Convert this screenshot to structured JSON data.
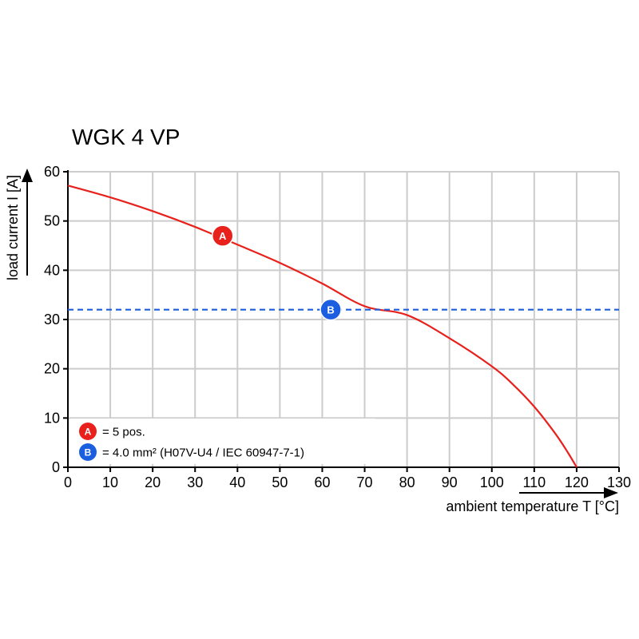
{
  "chart_data": {
    "type": "line",
    "title": "WGK 4 VP",
    "xlabel": "ambient temperature T [°C]",
    "ylabel": "load current I [A]",
    "xlim": [
      0,
      130
    ],
    "ylim": [
      0,
      60
    ],
    "xticks": [
      "0",
      "10",
      "20",
      "30",
      "40",
      "50",
      "60",
      "70",
      "80",
      "90",
      "100",
      "110",
      "120",
      "130"
    ],
    "yticks": [
      "0",
      "10",
      "20",
      "30",
      "40",
      "50",
      "60"
    ],
    "grid": true,
    "series": [
      {
        "marker": "A",
        "color": "#e8211d",
        "style": "solid",
        "x": [
          0,
          10,
          20,
          30,
          40,
          50,
          60,
          70,
          80,
          90,
          100,
          105,
          110,
          115,
          118,
          120
        ],
        "y": [
          57.2,
          54.8,
          52.0,
          48.8,
          45.2,
          41.5,
          37.3,
          32.7,
          30.9,
          26.2,
          20.5,
          16.8,
          12.3,
          6.8,
          2.9,
          0
        ]
      },
      {
        "marker": "B",
        "color": "#1b5fe0",
        "style": "dashed",
        "x": [
          0,
          130
        ],
        "y": [
          32,
          32
        ]
      }
    ],
    "markers": [
      {
        "label": "A",
        "x": 36.5,
        "y": 47,
        "color": "#e8211d"
      },
      {
        "label": "B",
        "x": 62,
        "y": 32,
        "color": "#1b5fe0"
      }
    ],
    "legend": {
      "placement": "bottom-left",
      "items": [
        {
          "badge": "A",
          "color": "#e8211d",
          "text": "= 5 pos."
        },
        {
          "badge": "B",
          "color": "#1b5fe0",
          "text": "= 4.0 mm² (H07V-U4 / IEC 60947-7-1)"
        }
      ]
    }
  }
}
